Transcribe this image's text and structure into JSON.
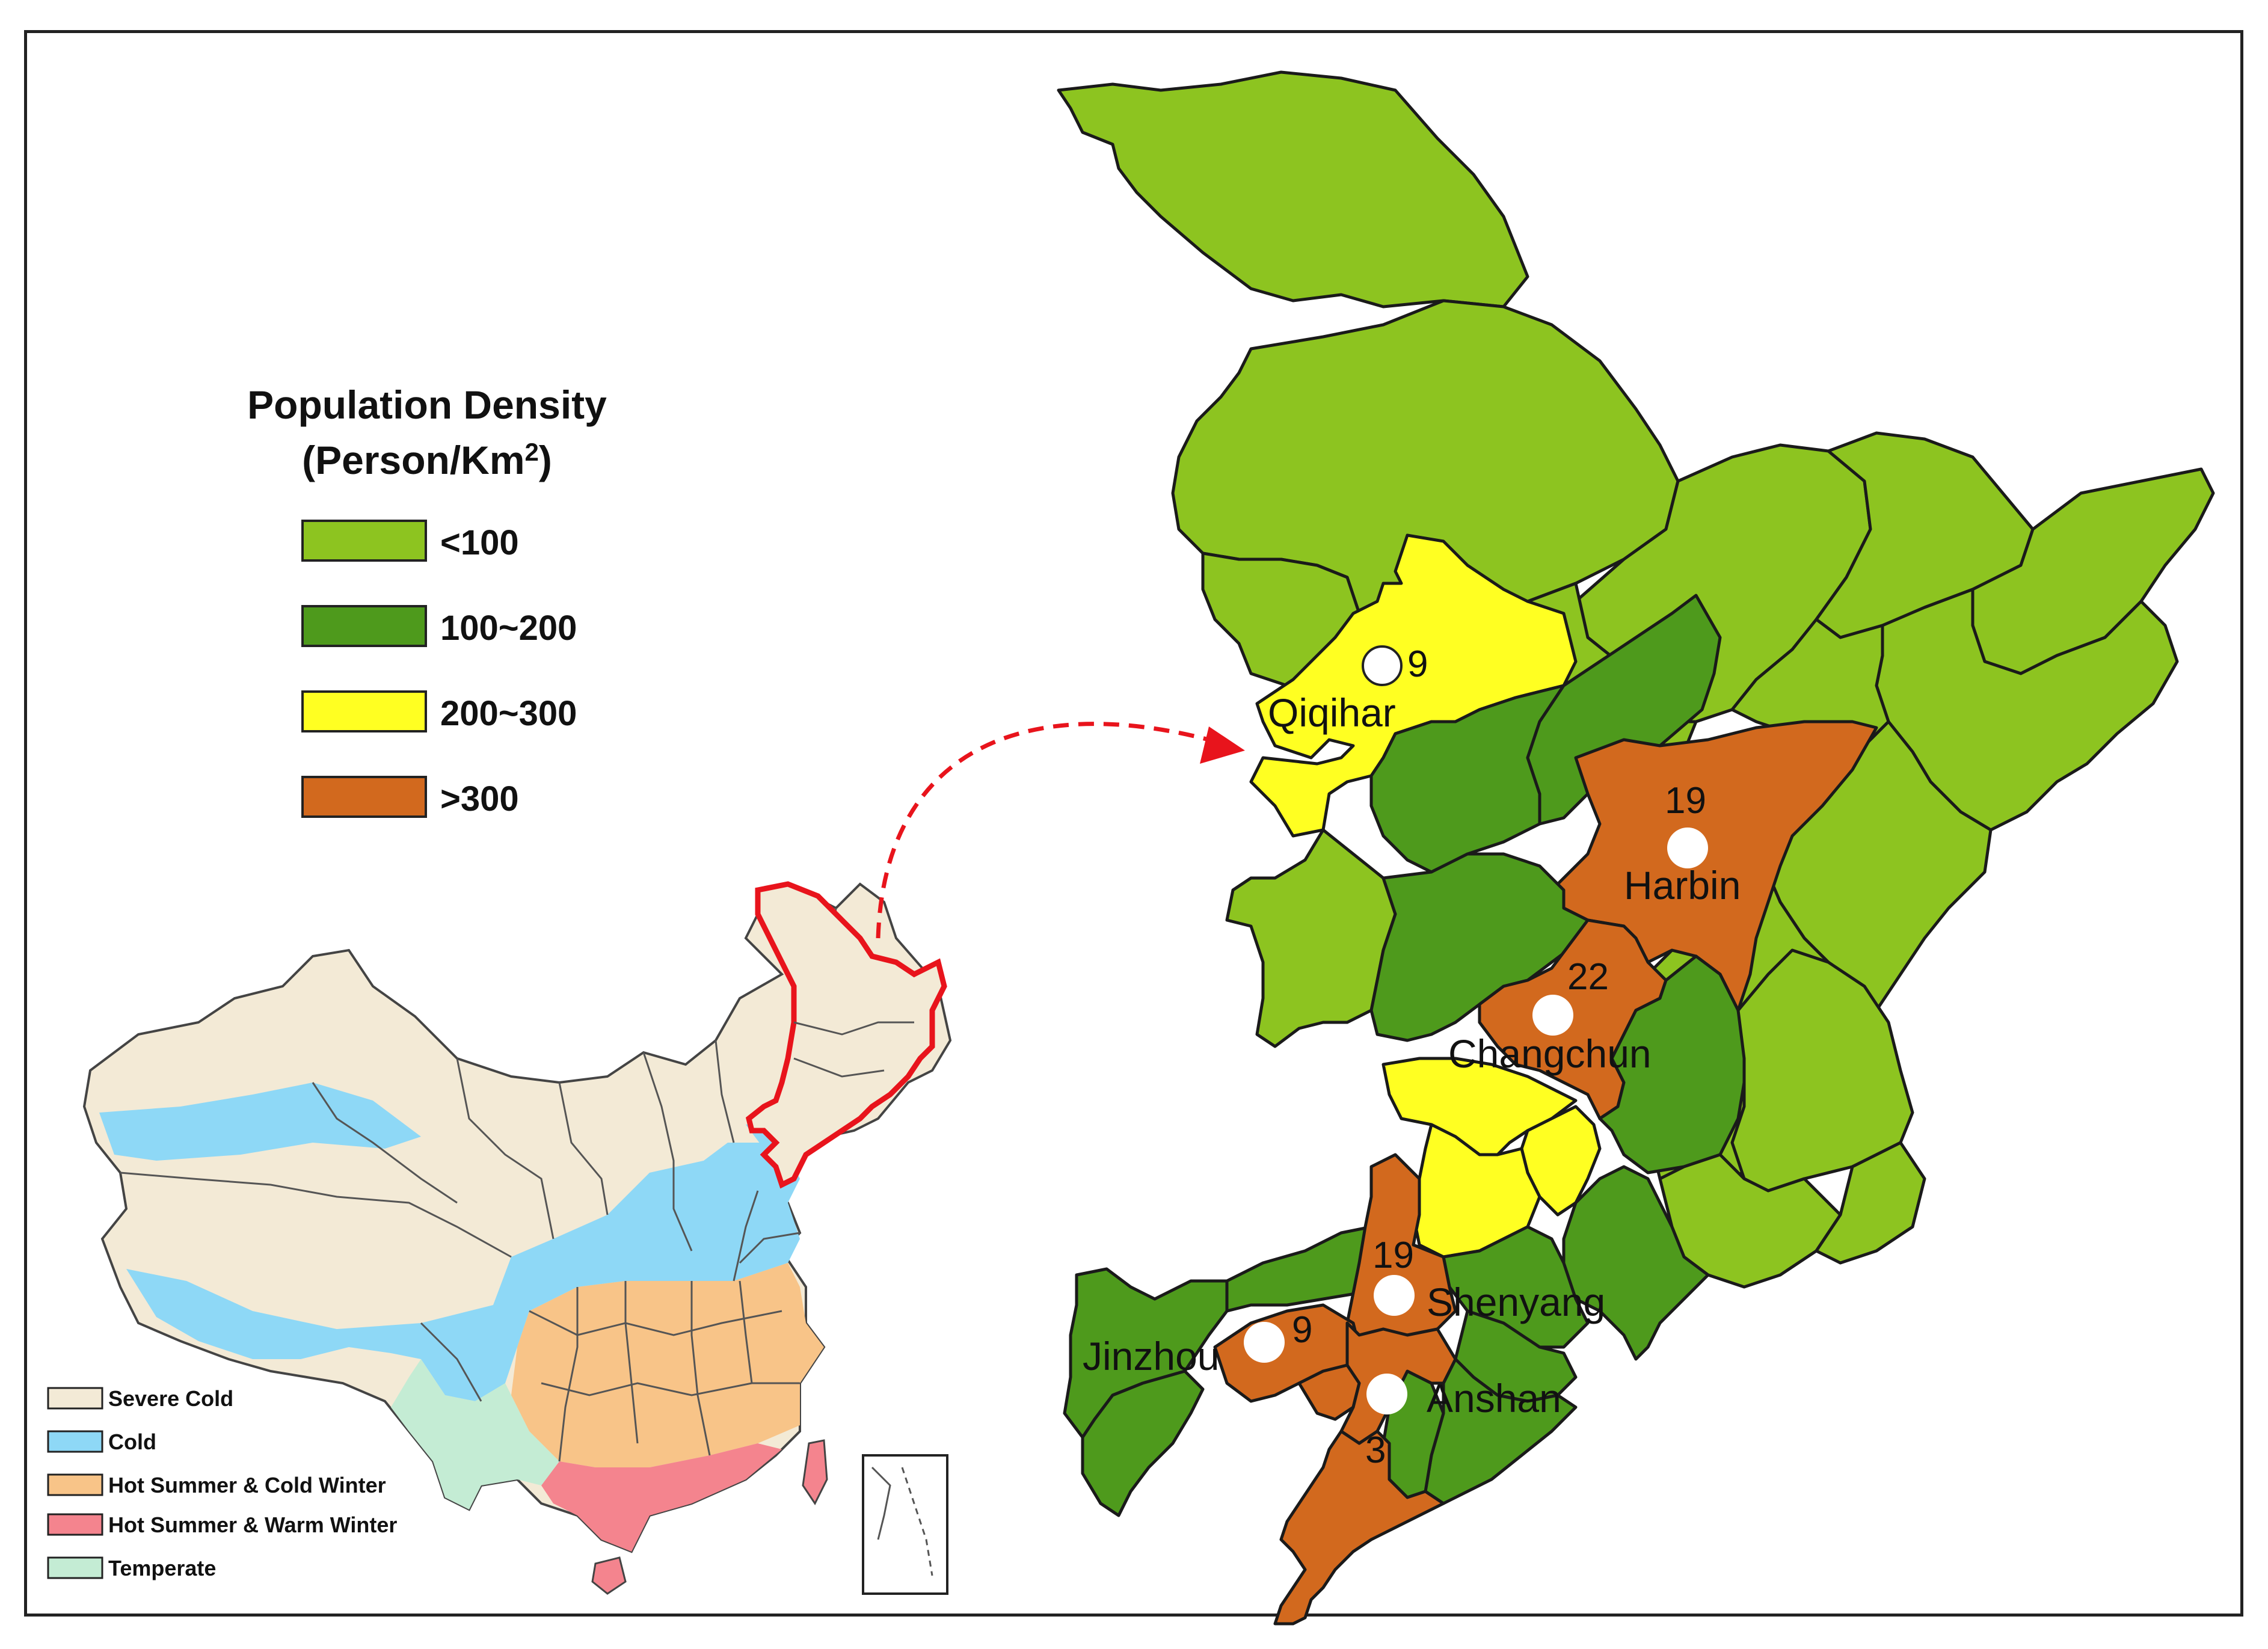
{
  "legend": {
    "title_line1": "Population Density",
    "title_line2": "(Person/Km",
    "title_sup": "2",
    "title_close": ")",
    "classes": [
      {
        "label": "<100",
        "color": "#8dc420"
      },
      {
        "label": "100~200",
        "color": "#4e9a1c"
      },
      {
        "label": "200~300",
        "color": "#ffff22"
      },
      {
        "label": ">300",
        "color": "#d2691e"
      }
    ]
  },
  "climate_legend": [
    {
      "label": "Severe Cold",
      "color": "#f3ead6"
    },
    {
      "label": "Cold",
      "color": "#8ed8f6"
    },
    {
      "label": "Hot Summer & Cold Winter",
      "color": "#f8c488"
    },
    {
      "label": "Hot Summer & Warm Winter",
      "color": "#f4848e"
    },
    {
      "label": "Temperate",
      "color": "#c4ecd4"
    }
  ],
  "cities": [
    {
      "name": "Qiqihar",
      "count": "9"
    },
    {
      "name": "Harbin",
      "count": "19"
    },
    {
      "name": "Changchun",
      "count": "22"
    },
    {
      "name": "Shenyang",
      "count": "19"
    },
    {
      "name": "Jinzhou",
      "count": "9"
    },
    {
      "name": "Anshan",
      "count": "3"
    }
  ],
  "colors": {
    "highlight_outline": "#e8141c",
    "arrow": "#e8141c",
    "station_marker": "#ffffff"
  }
}
